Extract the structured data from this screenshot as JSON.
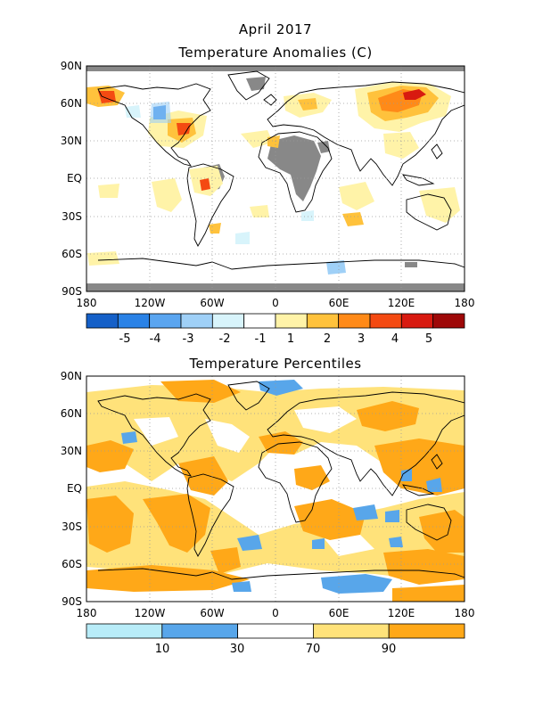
{
  "header": {
    "month_label": "April 2017"
  },
  "panels": [
    {
      "title": "Temperature Anomalies (C)",
      "lat_labels": [
        "90N",
        "60N",
        "30N",
        "EQ",
        "30S",
        "60S",
        "90S"
      ],
      "lon_labels": [
        "180",
        "120W",
        "60W",
        "0",
        "60E",
        "120E",
        "180"
      ],
      "colorbar": {
        "colors": [
          "#1560c8",
          "#2a82e6",
          "#5aa5f0",
          "#9fd0f7",
          "#d8f4fb",
          "#ffffff",
          "#fff3a8",
          "#ffc23c",
          "#ff8a18",
          "#f44a12",
          "#d81a10",
          "#9e0808"
        ],
        "labels": [
          "-5",
          "-4",
          "-3",
          "-2",
          "-1",
          "1",
          "2",
          "3",
          "4",
          "5"
        ]
      }
    },
    {
      "title": "Temperature Percentiles",
      "lat_labels": [
        "90N",
        "60N",
        "30N",
        "EQ",
        "30S",
        "60S",
        "90S"
      ],
      "lon_labels": [
        "180",
        "120W",
        "60W",
        "0",
        "60E",
        "120E",
        "180"
      ],
      "colorbar": {
        "colors": [
          "#b8ecf8",
          "#58a6ea",
          "#ffffff",
          "#ffe27a",
          "#ffa818"
        ],
        "labels": [
          "10",
          "30",
          "70",
          "90"
        ]
      }
    }
  ],
  "colors": {
    "missing": "#888888",
    "grid": "#9a9a9a",
    "coast": "#000000",
    "warm1": "#fff3a8",
    "warm2": "#ffc23c",
    "warm3": "#ff8a18",
    "warm4": "#f44a12",
    "warm5": "#d81a10",
    "cold1": "#d8f4fb",
    "cold2": "#9fd0f7",
    "cold4": "#2a82e6",
    "pct_above70": "#ffe27a",
    "pct_above90": "#ffa818",
    "pct_below30": "#58a6ea",
    "pct_below10": "#b8ecf8"
  }
}
